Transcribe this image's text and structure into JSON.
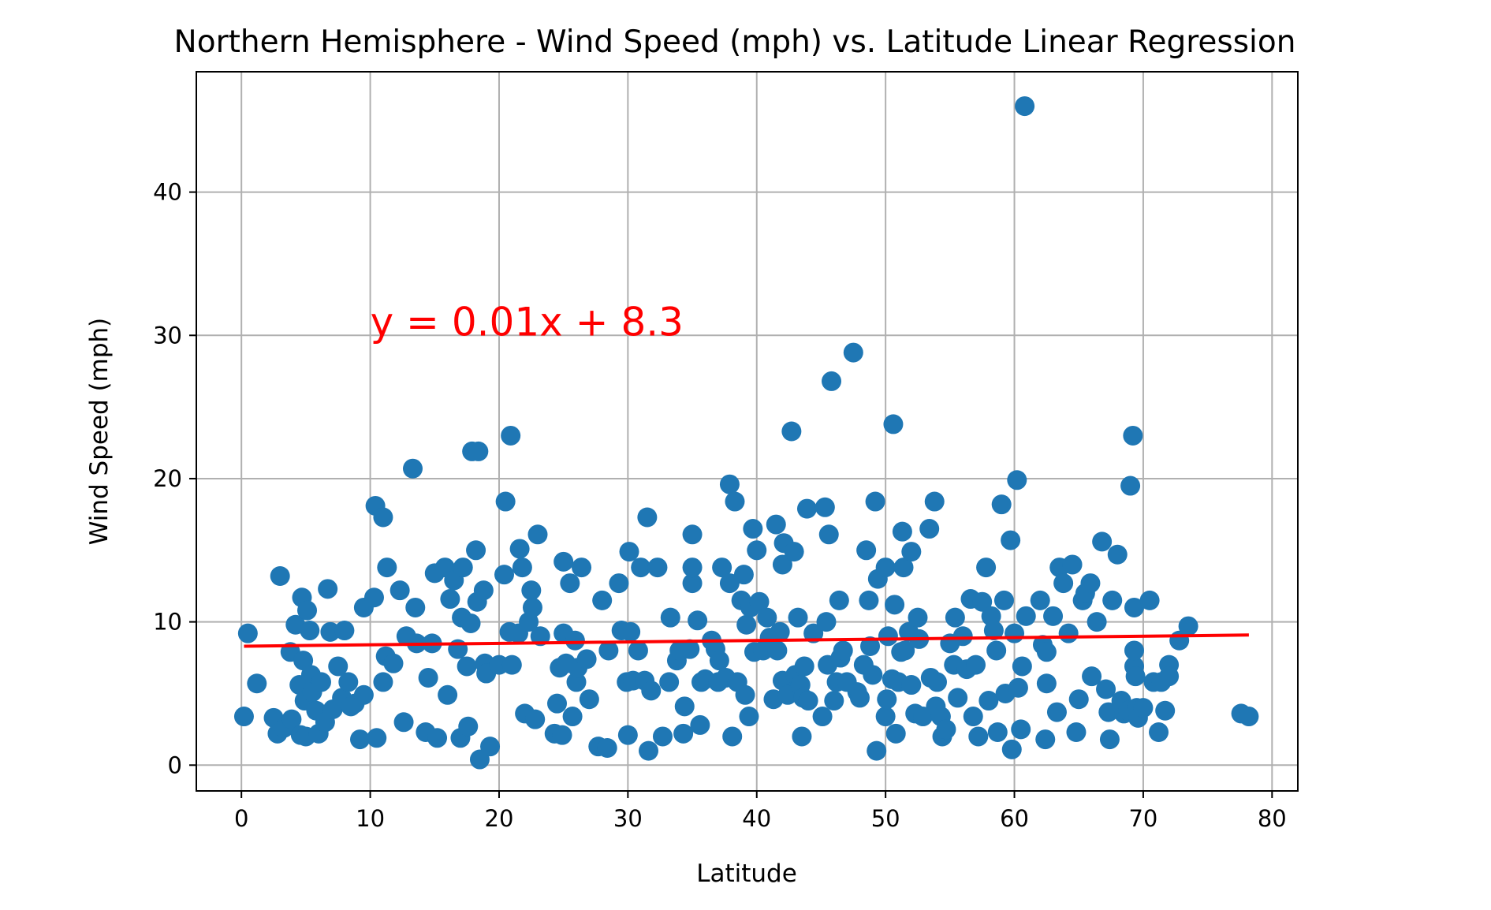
{
  "chart_data": {
    "type": "scatter",
    "title": "Northern Hemisphere - Wind Speed (mph) vs. Latitude Linear Regression",
    "xlabel": "Latitude",
    "ylabel": "Wind Speed (mph)",
    "xlim": [
      -3.5,
      82
    ],
    "ylim": [
      -1.8,
      48.4
    ],
    "xticks": [
      0,
      10,
      20,
      30,
      40,
      50,
      60,
      70,
      80
    ],
    "xtick_labels": [
      "0",
      "10",
      "20",
      "30",
      "40",
      "50",
      "60",
      "70",
      "80"
    ],
    "yticks": [
      0,
      10,
      20,
      30,
      40
    ],
    "ytick_labels": [
      "0",
      "10",
      "20",
      "30",
      "40"
    ],
    "grid": true,
    "colors": {
      "points": "#1f77b4",
      "regression": "#ff0000",
      "grid": "#b0b0b0"
    },
    "annotation": {
      "text": "y = 0.01x + 8.3",
      "x": 10,
      "y": 30
    },
    "regression": {
      "slope": 0.01,
      "intercept": 8.3,
      "x_range": [
        0.2,
        78.2
      ]
    },
    "points": [
      [
        0.2,
        3.4
      ],
      [
        0.5,
        9.2
      ],
      [
        1.2,
        5.7
      ],
      [
        2.5,
        3.3
      ],
      [
        2.8,
        2.2
      ],
      [
        3.0,
        13.2
      ],
      [
        3.3,
        2.6
      ],
      [
        3.8,
        7.9
      ],
      [
        3.9,
        3.2
      ],
      [
        4.2,
        9.8
      ],
      [
        4.5,
        5.6
      ],
      [
        4.6,
        2.1
      ],
      [
        4.7,
        11.7
      ],
      [
        4.8,
        7.3
      ],
      [
        4.9,
        4.5
      ],
      [
        5.0,
        2.0
      ],
      [
        5.1,
        10.8
      ],
      [
        5.3,
        9.4
      ],
      [
        5.4,
        6.3
      ],
      [
        5.5,
        5.1
      ],
      [
        5.8,
        3.8
      ],
      [
        6.0,
        2.2
      ],
      [
        6.2,
        5.8
      ],
      [
        6.5,
        3.0
      ],
      [
        6.7,
        12.3
      ],
      [
        6.9,
        9.3
      ],
      [
        7.1,
        3.9
      ],
      [
        7.5,
        6.9
      ],
      [
        7.8,
        4.7
      ],
      [
        8.0,
        9.4
      ],
      [
        8.3,
        5.8
      ],
      [
        8.5,
        4.1
      ],
      [
        8.8,
        4.3
      ],
      [
        9.2,
        1.8
      ],
      [
        9.5,
        4.9
      ],
      [
        9.5,
        11.0
      ],
      [
        10.3,
        11.7
      ],
      [
        10.4,
        18.1
      ],
      [
        10.5,
        1.9
      ],
      [
        11.0,
        17.3
      ],
      [
        11.0,
        5.8
      ],
      [
        11.2,
        7.6
      ],
      [
        11.3,
        13.8
      ],
      [
        11.8,
        7.1
      ],
      [
        12.3,
        12.2
      ],
      [
        12.6,
        3.0
      ],
      [
        12.8,
        9.0
      ],
      [
        13.3,
        20.7
      ],
      [
        13.5,
        11.0
      ],
      [
        13.6,
        8.5
      ],
      [
        14.3,
        2.3
      ],
      [
        14.5,
        6.1
      ],
      [
        14.8,
        8.5
      ],
      [
        15.0,
        13.4
      ],
      [
        15.2,
        1.9
      ],
      [
        15.8,
        13.8
      ],
      [
        16.0,
        4.9
      ],
      [
        16.2,
        11.6
      ],
      [
        16.5,
        12.9
      ],
      [
        16.8,
        8.1
      ],
      [
        17.0,
        1.9
      ],
      [
        17.1,
        10.3
      ],
      [
        17.2,
        13.8
      ],
      [
        17.5,
        6.9
      ],
      [
        17.6,
        2.7
      ],
      [
        17.8,
        9.9
      ],
      [
        17.9,
        21.9
      ],
      [
        18.2,
        15.0
      ],
      [
        18.3,
        11.4
      ],
      [
        18.4,
        21.9
      ],
      [
        18.5,
        0.4
      ],
      [
        18.8,
        12.2
      ],
      [
        18.9,
        7.1
      ],
      [
        19.0,
        6.4
      ],
      [
        19.3,
        1.3
      ],
      [
        20.0,
        7.0
      ],
      [
        20.4,
        13.3
      ],
      [
        20.5,
        18.4
      ],
      [
        20.8,
        9.3
      ],
      [
        20.9,
        23.0
      ],
      [
        21.0,
        7.0
      ],
      [
        21.5,
        9.2
      ],
      [
        21.6,
        15.1
      ],
      [
        21.8,
        13.8
      ],
      [
        22.0,
        3.6
      ],
      [
        22.3,
        10.0
      ],
      [
        22.5,
        12.2
      ],
      [
        22.6,
        11.0
      ],
      [
        22.8,
        3.2
      ],
      [
        23.0,
        16.1
      ],
      [
        23.2,
        9.0
      ],
      [
        24.3,
        2.2
      ],
      [
        24.5,
        4.3
      ],
      [
        24.7,
        6.8
      ],
      [
        24.9,
        2.1
      ],
      [
        25.0,
        14.2
      ],
      [
        25.0,
        9.2
      ],
      [
        25.2,
        7.1
      ],
      [
        25.5,
        12.7
      ],
      [
        25.7,
        3.4
      ],
      [
        25.9,
        8.7
      ],
      [
        26.0,
        5.8
      ],
      [
        26.1,
        6.8
      ],
      [
        26.4,
        13.8
      ],
      [
        26.8,
        7.4
      ],
      [
        27.0,
        4.6
      ],
      [
        27.7,
        1.3
      ],
      [
        28.0,
        11.5
      ],
      [
        28.4,
        1.2
      ],
      [
        28.5,
        8.0
      ],
      [
        29.3,
        12.7
      ],
      [
        29.5,
        9.4
      ],
      [
        29.9,
        5.8
      ],
      [
        30.0,
        2.1
      ],
      [
        30.1,
        14.9
      ],
      [
        30.2,
        9.3
      ],
      [
        30.4,
        5.9
      ],
      [
        30.8,
        8.0
      ],
      [
        31.0,
        13.8
      ],
      [
        31.3,
        5.9
      ],
      [
        31.5,
        17.3
      ],
      [
        31.6,
        1.0
      ],
      [
        31.8,
        5.2
      ],
      [
        32.3,
        13.8
      ],
      [
        32.7,
        2.0
      ],
      [
        33.2,
        5.8
      ],
      [
        33.3,
        10.3
      ],
      [
        33.8,
        7.3
      ],
      [
        34.0,
        8.0
      ],
      [
        34.3,
        2.2
      ],
      [
        34.4,
        4.1
      ],
      [
        34.8,
        8.1
      ],
      [
        35.0,
        16.1
      ],
      [
        35.0,
        12.7
      ],
      [
        35.0,
        13.8
      ],
      [
        35.4,
        10.1
      ],
      [
        35.6,
        2.8
      ],
      [
        35.7,
        5.8
      ],
      [
        36.0,
        6.0
      ],
      [
        36.5,
        8.7
      ],
      [
        36.8,
        8.1
      ],
      [
        37.0,
        5.8
      ],
      [
        37.1,
        7.3
      ],
      [
        37.3,
        13.8
      ],
      [
        37.6,
        6.1
      ],
      [
        37.9,
        19.6
      ],
      [
        37.9,
        12.7
      ],
      [
        38.1,
        2.0
      ],
      [
        38.3,
        18.4
      ],
      [
        38.5,
        5.8
      ],
      [
        38.8,
        11.5
      ],
      [
        39.0,
        13.3
      ],
      [
        39.1,
        4.9
      ],
      [
        39.2,
        9.8
      ],
      [
        39.4,
        3.4
      ],
      [
        39.5,
        11.0
      ],
      [
        39.7,
        16.5
      ],
      [
        39.8,
        7.9
      ],
      [
        40.0,
        15.0
      ],
      [
        40.2,
        11.4
      ],
      [
        40.5,
        8.0
      ],
      [
        40.8,
        10.3
      ],
      [
        41.0,
        8.9
      ],
      [
        41.3,
        4.6
      ],
      [
        41.5,
        16.8
      ],
      [
        41.6,
        8.0
      ],
      [
        41.8,
        9.3
      ],
      [
        42.0,
        5.9
      ],
      [
        42.0,
        14.0
      ],
      [
        42.1,
        15.5
      ],
      [
        42.4,
        4.9
      ],
      [
        42.7,
        23.3
      ],
      [
        42.9,
        14.9
      ],
      [
        43.0,
        6.3
      ],
      [
        43.2,
        10.3
      ],
      [
        43.4,
        5.6
      ],
      [
        43.5,
        2.0
      ],
      [
        43.6,
        4.7
      ],
      [
        43.7,
        6.9
      ],
      [
        43.9,
        17.9
      ],
      [
        44.0,
        4.5
      ],
      [
        44.4,
        9.2
      ],
      [
        45.1,
        3.4
      ],
      [
        45.3,
        18.0
      ],
      [
        45.4,
        10.0
      ],
      [
        45.5,
        7.0
      ],
      [
        45.6,
        16.1
      ],
      [
        45.8,
        26.8
      ],
      [
        46.0,
        4.5
      ],
      [
        46.2,
        5.8
      ],
      [
        46.4,
        11.5
      ],
      [
        46.5,
        7.5
      ],
      [
        46.7,
        8.0
      ],
      [
        47.0,
        5.8
      ],
      [
        47.5,
        28.8
      ],
      [
        47.8,
        5.1
      ],
      [
        48.0,
        4.7
      ],
      [
        48.3,
        7.0
      ],
      [
        48.5,
        15.0
      ],
      [
        48.7,
        11.5
      ],
      [
        48.8,
        8.3
      ],
      [
        49.0,
        6.3
      ],
      [
        49.2,
        18.4
      ],
      [
        49.3,
        1.0
      ],
      [
        49.4,
        13.0
      ],
      [
        50.0,
        13.8
      ],
      [
        50.0,
        3.4
      ],
      [
        50.1,
        4.6
      ],
      [
        50.2,
        9.0
      ],
      [
        50.5,
        6.0
      ],
      [
        50.6,
        23.8
      ],
      [
        50.7,
        11.2
      ],
      [
        50.8,
        2.2
      ],
      [
        51.0,
        5.8
      ],
      [
        51.2,
        7.9
      ],
      [
        51.3,
        16.3
      ],
      [
        51.4,
        13.8
      ],
      [
        51.5,
        8.0
      ],
      [
        51.8,
        9.3
      ],
      [
        52.0,
        14.9
      ],
      [
        52.0,
        5.6
      ],
      [
        52.3,
        3.6
      ],
      [
        52.5,
        10.3
      ],
      [
        52.6,
        8.8
      ],
      [
        52.9,
        3.4
      ],
      [
        53.4,
        16.5
      ],
      [
        53.5,
        6.1
      ],
      [
        53.8,
        18.4
      ],
      [
        53.9,
        4.1
      ],
      [
        54.0,
        5.8
      ],
      [
        54.3,
        3.4
      ],
      [
        54.4,
        2.0
      ],
      [
        54.7,
        2.5
      ],
      [
        55.0,
        8.5
      ],
      [
        55.3,
        7.0
      ],
      [
        55.4,
        10.3
      ],
      [
        55.6,
        4.7
      ],
      [
        56.0,
        9.0
      ],
      [
        56.3,
        6.7
      ],
      [
        56.6,
        11.6
      ],
      [
        56.8,
        3.4
      ],
      [
        57.0,
        7.0
      ],
      [
        57.2,
        2.0
      ],
      [
        57.5,
        11.4
      ],
      [
        57.8,
        13.8
      ],
      [
        58.0,
        4.5
      ],
      [
        58.2,
        10.4
      ],
      [
        58.4,
        9.4
      ],
      [
        58.6,
        8.0
      ],
      [
        58.7,
        2.3
      ],
      [
        59.0,
        18.2
      ],
      [
        59.2,
        11.5
      ],
      [
        59.3,
        5.0
      ],
      [
        59.7,
        15.7
      ],
      [
        59.8,
        1.1
      ],
      [
        60.0,
        9.2
      ],
      [
        60.2,
        19.9
      ],
      [
        60.3,
        5.4
      ],
      [
        60.5,
        2.5
      ],
      [
        60.6,
        6.9
      ],
      [
        60.8,
        46.0
      ],
      [
        60.9,
        10.4
      ],
      [
        62.0,
        11.5
      ],
      [
        62.2,
        8.4
      ],
      [
        62.4,
        1.8
      ],
      [
        62.5,
        7.9
      ],
      [
        62.5,
        5.7
      ],
      [
        63.0,
        10.4
      ],
      [
        63.3,
        3.7
      ],
      [
        63.5,
        13.8
      ],
      [
        63.8,
        12.7
      ],
      [
        64.2,
        9.2
      ],
      [
        64.5,
        14.0
      ],
      [
        64.8,
        2.3
      ],
      [
        65.0,
        4.6
      ],
      [
        65.3,
        11.5
      ],
      [
        65.5,
        12.0
      ],
      [
        65.9,
        12.7
      ],
      [
        66.0,
        6.2
      ],
      [
        66.4,
        10.0
      ],
      [
        66.8,
        15.6
      ],
      [
        67.1,
        5.3
      ],
      [
        67.3,
        3.7
      ],
      [
        67.4,
        1.8
      ],
      [
        67.6,
        11.5
      ],
      [
        68.0,
        14.7
      ],
      [
        68.3,
        4.5
      ],
      [
        68.5,
        3.6
      ],
      [
        68.8,
        3.8
      ],
      [
        69.0,
        19.5
      ],
      [
        69.2,
        23.0
      ],
      [
        69.3,
        11.0
      ],
      [
        69.3,
        6.9
      ],
      [
        69.3,
        8.0
      ],
      [
        69.4,
        6.2
      ],
      [
        69.5,
        4.0
      ],
      [
        69.6,
        3.3
      ],
      [
        70.0,
        4.0
      ],
      [
        70.5,
        11.5
      ],
      [
        70.8,
        5.8
      ],
      [
        71.2,
        2.3
      ],
      [
        71.4,
        5.8
      ],
      [
        71.7,
        3.8
      ],
      [
        72.0,
        7.0
      ],
      [
        72.0,
        6.2
      ],
      [
        72.8,
        8.7
      ],
      [
        73.5,
        9.7
      ],
      [
        77.6,
        3.6
      ],
      [
        78.2,
        3.4
      ]
    ]
  }
}
